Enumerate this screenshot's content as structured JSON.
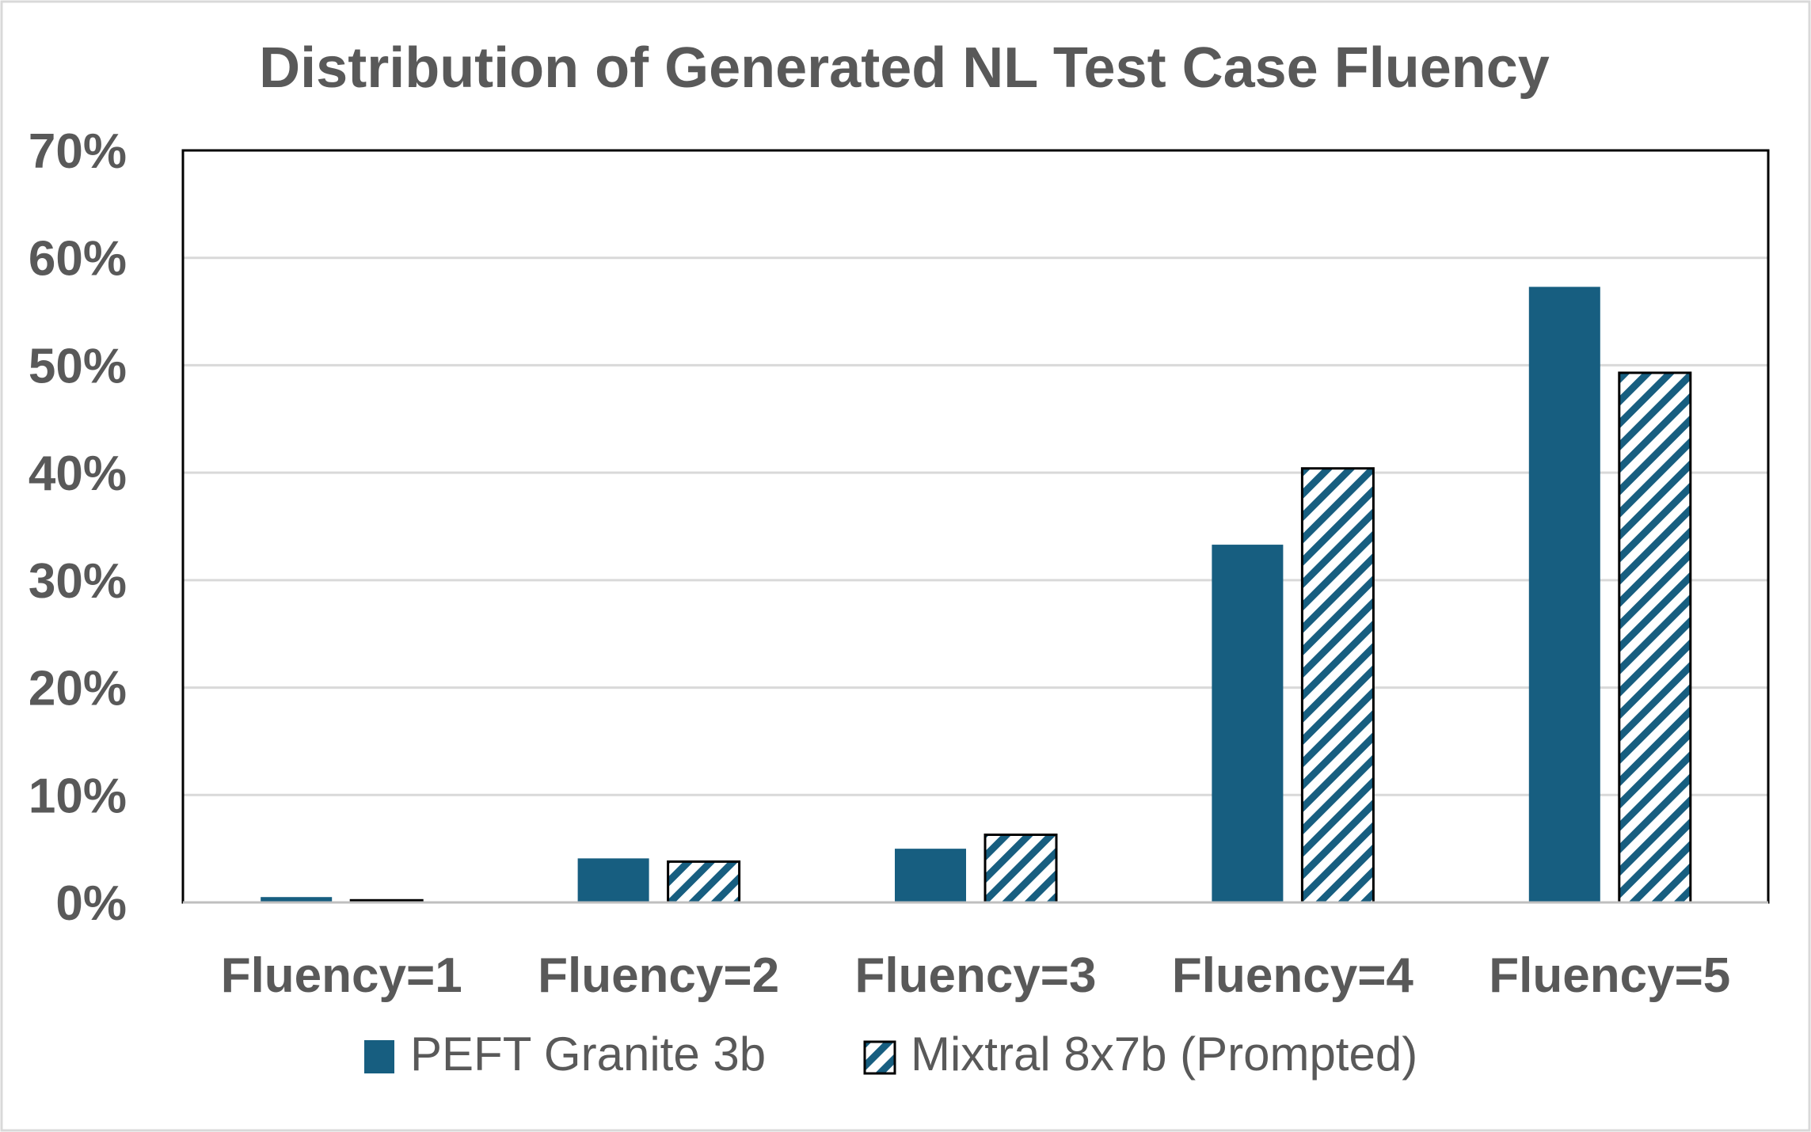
{
  "chart_data": {
    "type": "bar",
    "title": "Distribution of  Generated NL Test Case Fluency",
    "xlabel": "",
    "ylabel": "",
    "categories": [
      "Fluency=1",
      "Fluency=2",
      "Fluency=3",
      "Fluency=4",
      "Fluency=5"
    ],
    "series": [
      {
        "name": "PEFT Granite 3b",
        "values": [
          0.5,
          4.1,
          5.0,
          33.3,
          57.3
        ],
        "color": "#175E80",
        "pattern": "solid"
      },
      {
        "name": "Mixtral 8x7b (Prompted)",
        "values": [
          0.2,
          3.8,
          6.3,
          40.4,
          49.3
        ],
        "color": "#175E80",
        "pattern": "diagonal-hatch"
      }
    ],
    "ylim": [
      0,
      70
    ],
    "yticks": [
      "0%",
      "10%",
      "20%",
      "30%",
      "40%",
      "50%",
      "60%",
      "70%"
    ],
    "grid": true,
    "legend_position": "bottom"
  }
}
